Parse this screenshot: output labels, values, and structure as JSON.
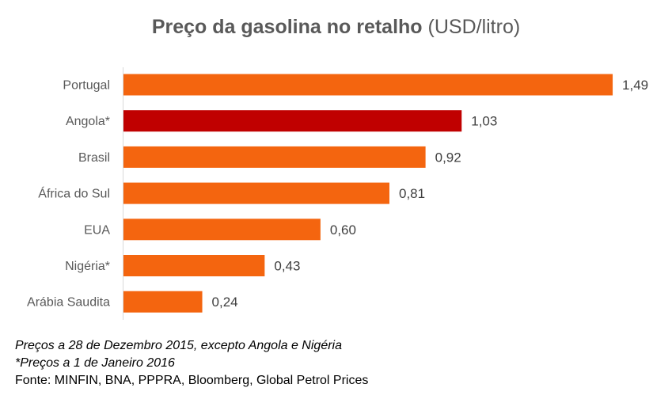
{
  "chart_data": {
    "type": "bar",
    "orientation": "horizontal",
    "title": "Preço da gasolina no retalho",
    "title_unit": "(USD/litro)",
    "categories": [
      "Portugal",
      "Angola*",
      "Brasil",
      "África do Sul",
      "EUA",
      "Nigéria*",
      "Arábia Saudita"
    ],
    "values": [
      1.49,
      1.03,
      0.92,
      0.81,
      0.6,
      0.43,
      0.24
    ],
    "data_labels": [
      "1,49",
      "1,03",
      "0,92",
      "0,81",
      "0,60",
      "0,43",
      "0,24"
    ],
    "colors": [
      "#F4650F",
      "#C00000",
      "#F4650F",
      "#F4650F",
      "#F4650F",
      "#F4650F",
      "#F4650F"
    ],
    "xlim": [
      0,
      1.6
    ],
    "grid": false,
    "legend": "none"
  },
  "notes": {
    "line1": "Preços a 28 de Dezembro 2015, excepto Angola e Nigéria",
    "line2": "*Preços a 1 de Janeiro 2016",
    "source": "Fonte: MINFIN, BNA, PPPRA, Bloomberg, Global Petrol Prices"
  }
}
